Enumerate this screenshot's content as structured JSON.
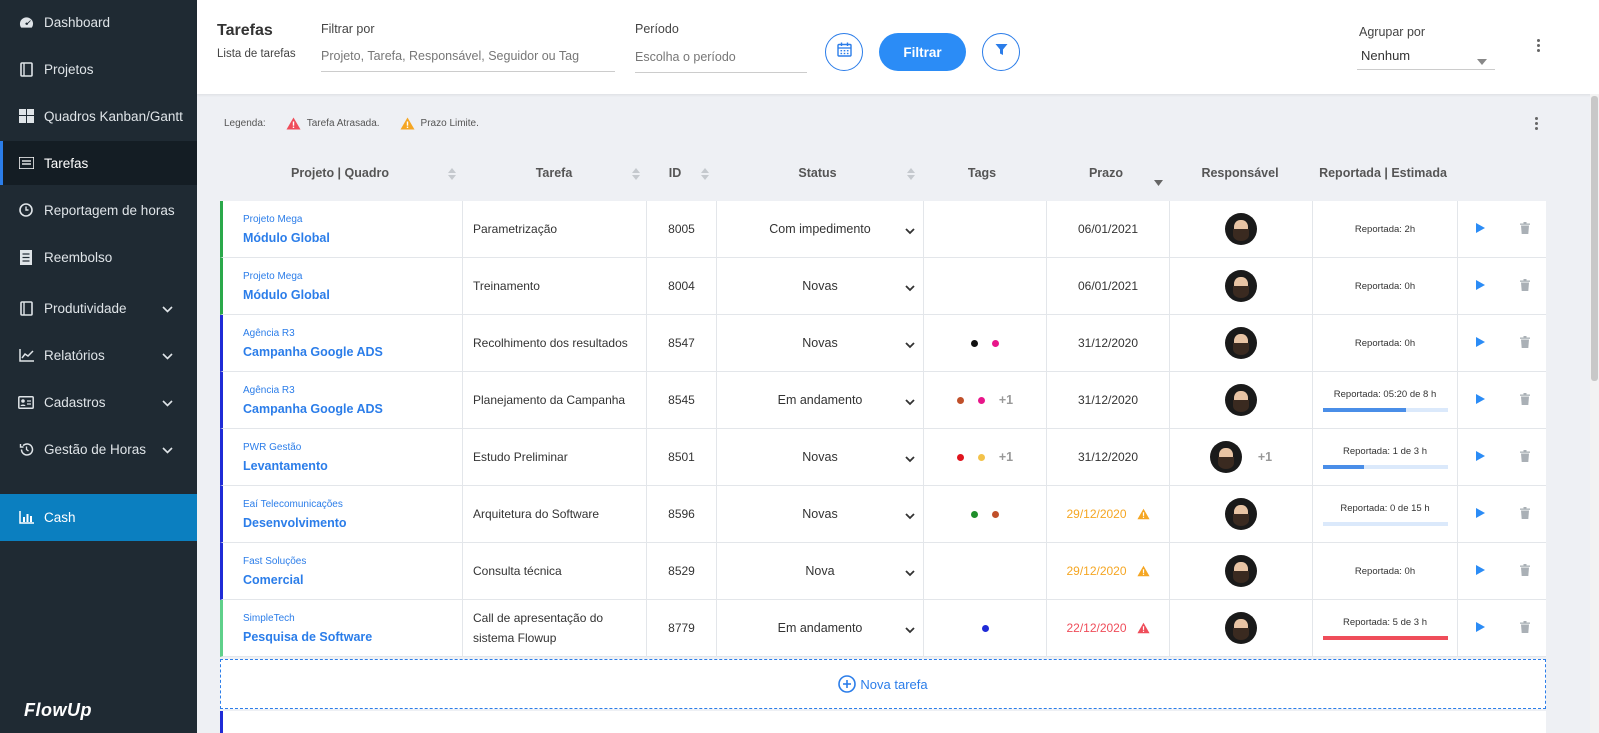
{
  "sidebar": {
    "items": [
      {
        "label": "Dashboard",
        "icon": "dashboard-icon"
      },
      {
        "label": "Projetos",
        "icon": "book-icon"
      },
      {
        "label": "Quadros Kanban/Gantt",
        "icon": "grid-icon"
      },
      {
        "label": "Tarefas",
        "icon": "list-icon"
      },
      {
        "label": "Reportagem de horas",
        "icon": "clock-icon"
      },
      {
        "label": "Reembolso",
        "icon": "receipt-icon"
      },
      {
        "label": "Produtividade",
        "icon": "book-icon"
      },
      {
        "label": "Relatórios",
        "icon": "line-chart-icon"
      },
      {
        "label": "Cadastros",
        "icon": "id-card-icon"
      },
      {
        "label": "Gestão de Horas",
        "icon": "history-icon"
      },
      {
        "label": "Cash",
        "icon": "bar-chart-icon"
      }
    ],
    "logo": "FlowUp"
  },
  "header": {
    "title": "Tarefas",
    "subtitle": "Lista de tarefas",
    "filter_label": "Filtrar por",
    "filter_placeholder": "Projeto, Tarefa, Responsável, Seguidor ou Tag",
    "period_label": "Período",
    "period_placeholder": "Escolha o período",
    "filter_button": "Filtrar",
    "group_label": "Agrupar por",
    "group_value": "Nenhum"
  },
  "legend": {
    "label": "Legenda:",
    "late": "Tarefa Atrasada.",
    "deadline": "Prazo Limite."
  },
  "columns": {
    "project": "Projeto | Quadro",
    "task": "Tarefa",
    "id": "ID",
    "status": "Status",
    "tags": "Tags",
    "deadline": "Prazo",
    "owner": "Responsável",
    "reported": "Reportada | Estimada"
  },
  "rows": [
    {
      "client": "Projeto Mega",
      "board": "Módulo Global",
      "task": "Parametrização",
      "id": "8005",
      "status": "Com impedimento",
      "tags": [],
      "extra_tags": "",
      "deadline": "06/01/2021",
      "deadline_state": "normal",
      "extra_owners": "",
      "reported": "Reportada: 2h",
      "progress": null,
      "border": "#2aa84a"
    },
    {
      "client": "Projeto Mega",
      "board": "Módulo Global",
      "task": "Treinamento",
      "id": "8004",
      "status": "Novas",
      "tags": [],
      "extra_tags": "",
      "deadline": "06/01/2021",
      "deadline_state": "normal",
      "extra_owners": "",
      "reported": "Reportada: 0h",
      "progress": null,
      "border": "#2aa84a"
    },
    {
      "client": "Agência R3",
      "board": "Campanha Google ADS",
      "task": "Recolhimento dos resultados",
      "id": "8547",
      "status": "Novas",
      "tags": [
        "#111111",
        "#e8168a"
      ],
      "extra_tags": "",
      "deadline": "31/12/2020",
      "deadline_state": "normal",
      "extra_owners": "",
      "reported": "Reportada: 0h",
      "progress": null,
      "border": "#1f2bd6"
    },
    {
      "client": "Agência R3",
      "board": "Campanha Google ADS",
      "task": "Planejamento da Campanha",
      "id": "8545",
      "status": "Em andamento",
      "tags": [
        "#c0502a",
        "#e8168a"
      ],
      "extra_tags": "+1",
      "deadline": "31/12/2020",
      "deadline_state": "normal",
      "extra_owners": "",
      "reported": "Reportada: 05:20 de 8 h",
      "progress": 0.667,
      "border": "#1f2bd6"
    },
    {
      "client": "PWR Gestão",
      "board": "Levantamento",
      "task": "Estudo Preliminar",
      "id": "8501",
      "status": "Novas",
      "tags": [
        "#e0141e",
        "#f3c24a"
      ],
      "extra_tags": "+1",
      "deadline": "31/12/2020",
      "deadline_state": "normal",
      "extra_owners": "+1",
      "reported": "Reportada: 1 de 3 h",
      "progress": 0.333,
      "border": "#1f2bd6"
    },
    {
      "client": "Eaí Telecomunicações",
      "board": "Desenvolvimento",
      "task": "Arquitetura do Software",
      "id": "8596",
      "status": "Novas",
      "tags": [
        "#1e8e2a",
        "#c0502a"
      ],
      "extra_tags": "",
      "deadline": "29/12/2020",
      "deadline_state": "warning",
      "extra_owners": "",
      "reported": "Reportada: 0 de 15 h",
      "progress": 0.0,
      "border": "#1f2bd6"
    },
    {
      "client": "Fast Soluções",
      "board": "Comercial",
      "task": "Consulta técnica",
      "id": "8529",
      "status": "Nova",
      "tags": [],
      "extra_tags": "",
      "deadline": "29/12/2020",
      "deadline_state": "warning",
      "extra_owners": "",
      "reported": "Reportada: 0h",
      "progress": null,
      "border": "#1f2bd6"
    },
    {
      "client": "SimpleTech",
      "board": "Pesquisa de Software",
      "task": "Call de apresentação do sistema Flowup",
      "id": "8779",
      "status": "Em andamento",
      "tags": [
        "#1f2bd6"
      ],
      "extra_tags": "",
      "deadline": "22/12/2020",
      "deadline_state": "late",
      "extra_owners": "",
      "reported": "Reportada: 5 de 3 h",
      "progress": 1.0,
      "overrun": true,
      "border": "#5fd08a"
    }
  ],
  "new_task": "Nova tarefa",
  "colors": {
    "primary": "#2b8cf6",
    "warning": "#f5a623",
    "late": "#ef4d5a",
    "sidebar": "#1f2a33",
    "cash": "#0b7fc0"
  }
}
